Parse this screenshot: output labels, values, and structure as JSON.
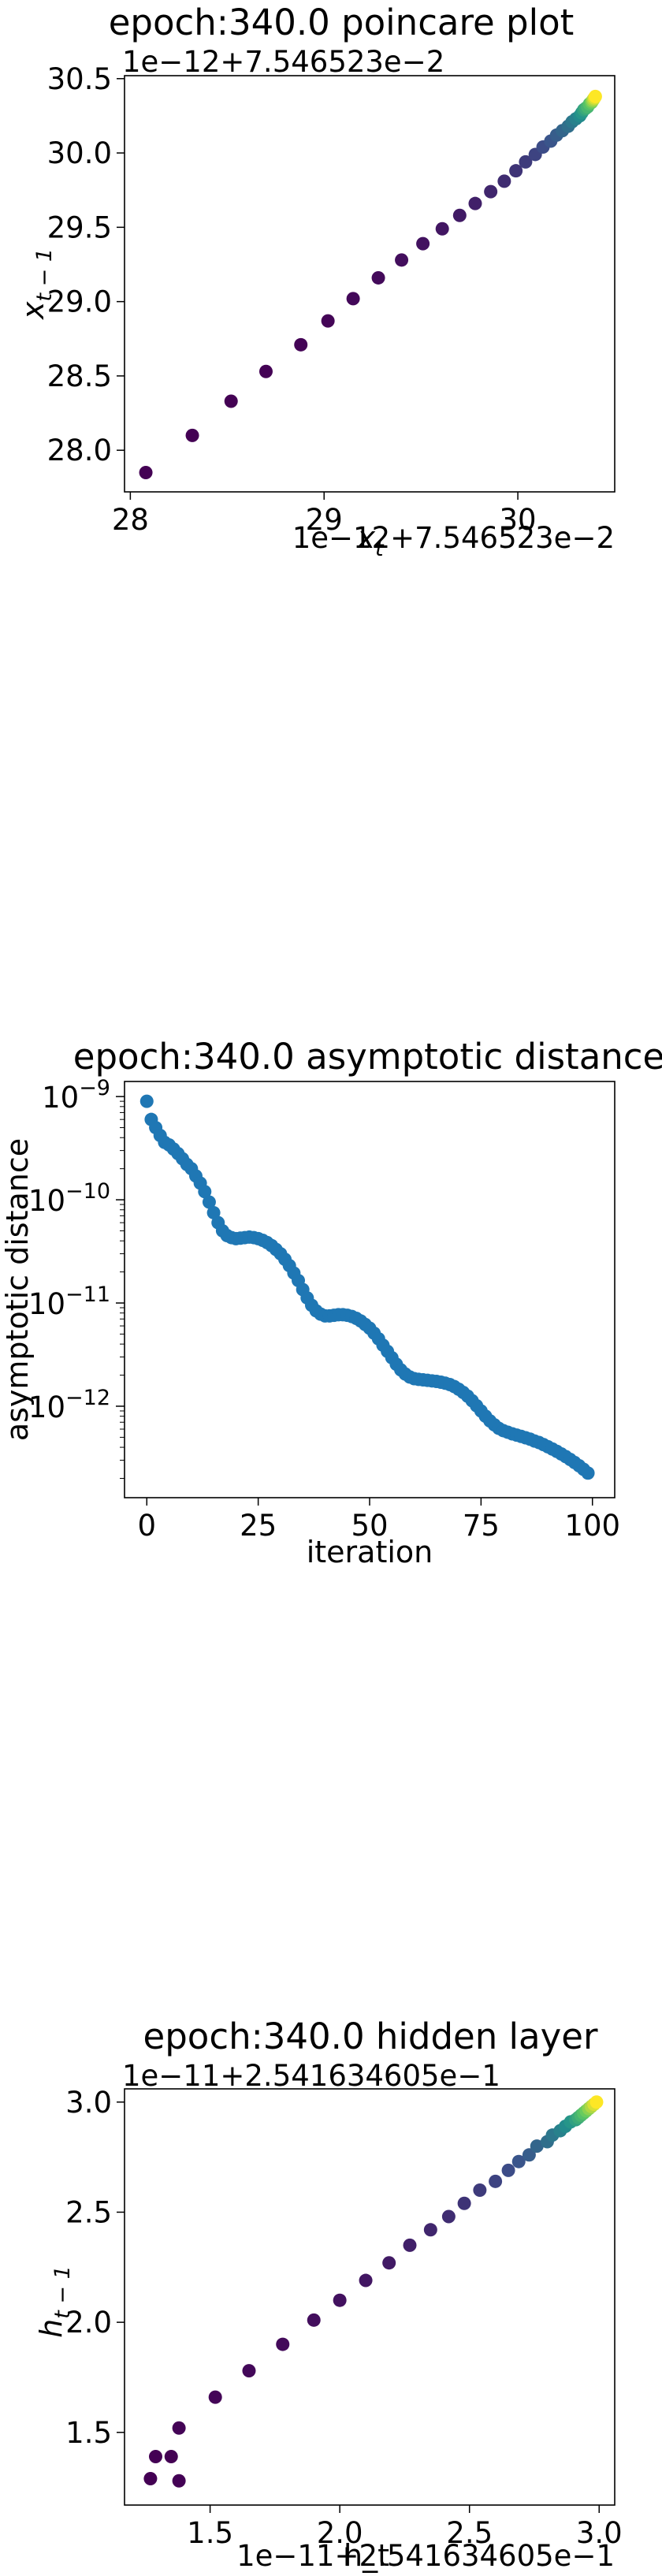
{
  "chart_data": [
    {
      "type": "scatter",
      "title": "epoch:340.0 poincare plot",
      "xlabel_base": "x",
      "xlabel_sub": "t",
      "ylabel_base": "x",
      "ylabel_sub": "t − 1",
      "x_offset_text": "1e−12+7.546523e−2",
      "y_offset_text": "1e−12+7.546523e−2",
      "xlim": [
        27.97,
        30.5
      ],
      "ylim": [
        27.72,
        30.52
      ],
      "xticks": [
        28,
        29,
        30
      ],
      "xtick_labels": [
        "28",
        "29",
        "30"
      ],
      "yticks": [
        28.0,
        28.5,
        29.0,
        29.5,
        30.0,
        30.5
      ],
      "ytick_labels": [
        "28.0",
        "28.5",
        "29.0",
        "29.5",
        "30.0",
        "30.5"
      ],
      "colormap": [
        "#440154",
        "#3b528b",
        "#21918c",
        "#5ec962",
        "#fde725"
      ],
      "points": [
        [
          28.08,
          27.85
        ],
        [
          28.32,
          28.1
        ],
        [
          28.52,
          28.33
        ],
        [
          28.7,
          28.53
        ],
        [
          28.88,
          28.71
        ],
        [
          29.02,
          28.87
        ],
        [
          29.15,
          29.02
        ],
        [
          29.28,
          29.16
        ],
        [
          29.4,
          29.28
        ],
        [
          29.51,
          29.39
        ],
        [
          29.61,
          29.49
        ],
        [
          29.7,
          29.58
        ],
        [
          29.78,
          29.66
        ],
        [
          29.86,
          29.74
        ],
        [
          29.93,
          29.81
        ],
        [
          29.99,
          29.88
        ],
        [
          30.04,
          29.94
        ],
        [
          30.09,
          29.99
        ],
        [
          30.13,
          30.04
        ],
        [
          30.17,
          30.08
        ],
        [
          30.2,
          30.12
        ],
        [
          30.23,
          30.15
        ],
        [
          30.26,
          30.18
        ],
        [
          30.28,
          30.21
        ],
        [
          30.3,
          30.23
        ],
        [
          30.32,
          30.25
        ],
        [
          30.33,
          30.27
        ],
        [
          30.34,
          30.29
        ],
        [
          30.35,
          30.3
        ],
        [
          30.36,
          30.31
        ],
        [
          30.37,
          30.33
        ],
        [
          30.38,
          30.34
        ],
        [
          30.385,
          30.35
        ],
        [
          30.39,
          30.36
        ],
        [
          30.395,
          30.37
        ],
        [
          30.4,
          30.38
        ]
      ]
    },
    {
      "type": "scatter",
      "title": "epoch:340.0 asymptotic distance",
      "xlabel": "iteration",
      "ylabel": "asymptotic distance",
      "yscale": "log",
      "xlim": [
        -5,
        105
      ],
      "ylim": [
        1.3e-13,
        1.4e-09
      ],
      "xticks": [
        0,
        25,
        50,
        75,
        100
      ],
      "xtick_labels": [
        "0",
        "25",
        "50",
        "75",
        "100"
      ],
      "yticks": [
        1e-12,
        1e-11,
        1e-10,
        1e-09
      ],
      "ytick_mantissa": "10",
      "ytick_exponents": [
        "−12",
        "−11",
        "−10",
        "−9"
      ],
      "color": "#1f77b4",
      "x": [
        0,
        1,
        2,
        3,
        4,
        5,
        6,
        7,
        8,
        9,
        10,
        11,
        12,
        13,
        14,
        15,
        16,
        17,
        18,
        19,
        20,
        21,
        22,
        23,
        24,
        25,
        26,
        27,
        28,
        29,
        30,
        31,
        32,
        33,
        34,
        35,
        36,
        37,
        38,
        39,
        40,
        41,
        42,
        43,
        44,
        45,
        46,
        47,
        48,
        49,
        50,
        51,
        52,
        53,
        54,
        55,
        56,
        57,
        58,
        59,
        60,
        61,
        62,
        63,
        64,
        65,
        66,
        67,
        68,
        69,
        70,
        71,
        72,
        73,
        74,
        75,
        76,
        77,
        78,
        79,
        80,
        81,
        82,
        83,
        84,
        85,
        86,
        87,
        88,
        89,
        90,
        91,
        92,
        93,
        94,
        95,
        96,
        97,
        98,
        99
      ],
      "values": [
        9e-10,
        6e-10,
        5e-10,
        4.2e-10,
        3.6e-10,
        3.4e-10,
        3.1e-10,
        2.8e-10,
        2.5e-10,
        2.2e-10,
        2e-10,
        1.7e-10,
        1.45e-10,
        1.2e-10,
        9.5e-11,
        7.5e-11,
        6e-11,
        5e-11,
        4.5e-11,
        4.3e-11,
        4.2e-11,
        4.25e-11,
        4.3e-11,
        4.35e-11,
        4.3e-11,
        4.2e-11,
        4.05e-11,
        3.85e-11,
        3.6e-11,
        3.3e-11,
        3e-11,
        2.65e-11,
        2.3e-11,
        1.95e-11,
        1.65e-11,
        1.35e-11,
        1.12e-11,
        9.5e-12,
        8.4e-12,
        7.8e-12,
        7.5e-12,
        7.5e-12,
        7.6e-12,
        7.7e-12,
        7.7e-12,
        7.6e-12,
        7.4e-12,
        7.1e-12,
        6.7e-12,
        6.2e-12,
        5.7e-12,
        5.1e-12,
        4.5e-12,
        3.9e-12,
        3.4e-12,
        2.95e-12,
        2.55e-12,
        2.25e-12,
        2.05e-12,
        1.92e-12,
        1.85e-12,
        1.82e-12,
        1.8e-12,
        1.78e-12,
        1.76e-12,
        1.74e-12,
        1.71e-12,
        1.67e-12,
        1.62e-12,
        1.55e-12,
        1.46e-12,
        1.36e-12,
        1.25e-12,
        1.13e-12,
        1.01e-12,
        9e-13,
        8e-13,
        7.2e-13,
        6.6e-13,
        6.1e-13,
        5.8e-13,
        5.6e-13,
        5.4e-13,
        5.25e-13,
        5.1e-13,
        4.95e-13,
        4.8e-13,
        4.6e-13,
        4.45e-13,
        4.25e-13,
        4.05e-13,
        3.85e-13,
        3.65e-13,
        3.45e-13,
        3.25e-13,
        3.05e-13,
        2.85e-13,
        2.65e-13,
        2.45e-13,
        2.25e-13
      ]
    },
    {
      "type": "scatter",
      "title": "epoch:340.0 hidden layer",
      "xlabel": "h_t",
      "ylabel_base": "h",
      "ylabel_sub": "t − 1",
      "x_offset_text": "1e−11+2.541634605e−1",
      "y_offset_text": "1e−11+2.541634605e−1",
      "xlim": [
        1.17,
        3.06
      ],
      "ylim": [
        1.17,
        3.06
      ],
      "xticks": [
        1.5,
        2.0,
        2.5,
        3.0
      ],
      "xtick_labels": [
        "1.5",
        "2.0",
        "2.5",
        "3.0"
      ],
      "yticks": [
        1.5,
        2.0,
        2.5,
        3.0
      ],
      "ytick_labels": [
        "1.5",
        "2.0",
        "2.5",
        "3.0"
      ],
      "colormap": [
        "#440154",
        "#3b528b",
        "#21918c",
        "#5ec962",
        "#fde725"
      ],
      "points": [
        [
          1.27,
          1.29
        ],
        [
          1.29,
          1.39
        ],
        [
          1.35,
          1.39
        ],
        [
          1.38,
          1.28
        ],
        [
          1.38,
          1.52
        ],
        [
          1.52,
          1.66
        ],
        [
          1.65,
          1.78
        ],
        [
          1.78,
          1.9
        ],
        [
          1.9,
          2.01
        ],
        [
          2.0,
          2.1
        ],
        [
          2.1,
          2.19
        ],
        [
          2.19,
          2.27
        ],
        [
          2.27,
          2.35
        ],
        [
          2.35,
          2.42
        ],
        [
          2.42,
          2.48
        ],
        [
          2.48,
          2.54
        ],
        [
          2.54,
          2.6
        ],
        [
          2.6,
          2.64
        ],
        [
          2.65,
          2.69
        ],
        [
          2.69,
          2.73
        ],
        [
          2.73,
          2.76
        ],
        [
          2.76,
          2.8
        ],
        [
          2.8,
          2.82
        ],
        [
          2.82,
          2.85
        ],
        [
          2.85,
          2.87
        ],
        [
          2.87,
          2.89
        ],
        [
          2.89,
          2.91
        ],
        [
          2.91,
          2.92
        ],
        [
          2.92,
          2.93
        ],
        [
          2.93,
          2.94
        ],
        [
          2.94,
          2.95
        ],
        [
          2.95,
          2.96
        ],
        [
          2.96,
          2.97
        ],
        [
          2.97,
          2.98
        ],
        [
          2.98,
          2.99
        ],
        [
          2.99,
          3.0
        ]
      ]
    }
  ]
}
